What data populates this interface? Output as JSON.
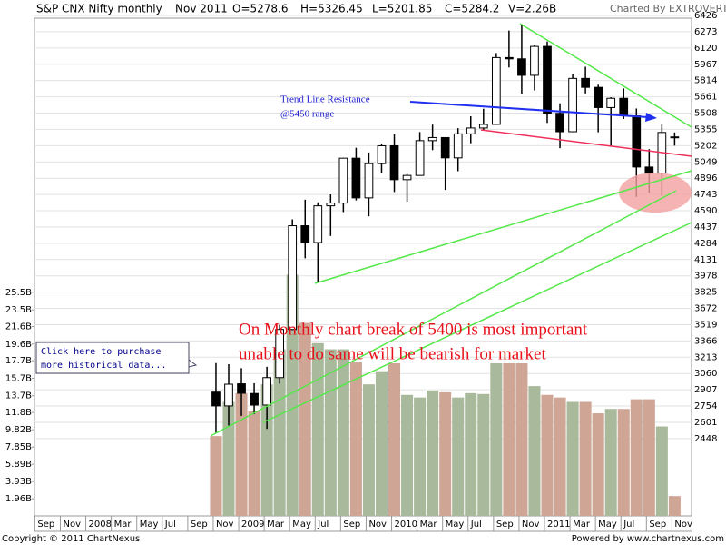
{
  "chart_data": {
    "type": "candlestick",
    "title": "S&P CNX Nifty monthly",
    "header": [
      "Nov 2011",
      "O=5278.6",
      "H=5326.45",
      "L=5201.85",
      "C=5284.2",
      "V=2.26B"
    ],
    "credit": "Charted By EXTROVERT",
    "footer_left": "Copyright © 2011 ChartNexus",
    "footer_right": "Powered by www.chartnexus.com",
    "tooltip": [
      "Click here to purchase",
      "more historical data..."
    ],
    "annotations": [
      "Trend Line Resistance",
      "@5450 range",
      "On Monthly chart break of 5400 is most important",
      "unable to do same will be bearish for market"
    ],
    "categories": [
      "Sep",
      null,
      "Nov",
      null,
      "2008",
      null,
      "Mar",
      null,
      "May",
      null,
      "Jul",
      null,
      "Sep",
      null,
      "Nov",
      null,
      "2009",
      null,
      "Mar",
      null,
      "May",
      null,
      "Jul",
      null,
      "Sep",
      null,
      "Nov",
      null,
      "2010",
      null,
      "Mar",
      null,
      "May",
      null,
      "Jul",
      null,
      "Sep",
      null,
      "Nov",
      null,
      "2011",
      null,
      "Mar",
      null,
      "May",
      null,
      "Jul",
      null,
      "Sep",
      null,
      "Nov"
    ],
    "open": [
      null,
      null,
      null,
      null,
      null,
      null,
      null,
      null,
      null,
      null,
      null,
      null,
      null,
      null,
      2885,
      2755,
      2963,
      2872,
      2763,
      3021,
      3474,
      4449,
      4291,
      4636,
      4662,
      5084,
      4711,
      5033,
      5201,
      4882,
      4922,
      5249,
      5278,
      5087,
      5313,
      5368,
      5402,
      6030,
      6018,
      5863,
      6135,
      5506,
      5333,
      5834,
      5750,
      5560,
      5647,
      5482,
      5001,
      4943,
      5278.6
    ],
    "high": [
      null,
      null,
      null,
      null,
      null,
      null,
      null,
      null,
      null,
      null,
      null,
      null,
      null,
      null,
      3158,
      3147,
      3110,
      2968,
      3123,
      3518,
      4509,
      4694,
      4669,
      4744,
      5087,
      5182,
      5138,
      5221,
      5311,
      4935,
      5330,
      5400,
      5278,
      5366,
      5478,
      5549,
      6073,
      6284,
      6338,
      6147,
      6181,
      5600,
      5872,
      5944,
      5775,
      5657,
      5740,
      5551,
      5169,
      5399,
      5326.45
    ],
    "low": [
      null,
      null,
      null,
      null,
      null,
      null,
      null,
      null,
      null,
      null,
      null,
      null,
      null,
      null,
      2502,
      2570,
      2661,
      2677,
      2539,
      2965,
      3468,
      4143,
      3919,
      4353,
      4577,
      4687,
      4538,
      4944,
      4766,
      4675,
      4922,
      5160,
      4786,
      4962,
      5225,
      5348,
      5403,
      5937,
      5690,
      5721,
      5416,
      5178,
      5330,
      5693,
      5328,
      5196,
      5453,
      4720,
      4758,
      4728,
      5201.85
    ],
    "close": [
      null,
      null,
      null,
      null,
      null,
      null,
      null,
      null,
      null,
      null,
      null,
      null,
      null,
      null,
      2755,
      2959,
      2874,
      2763,
      3021,
      3474,
      4449,
      4291,
      4636,
      4662,
      5084,
      4711,
      5033,
      5201,
      4882,
      4922,
      5249,
      5278,
      5087,
      5313,
      5368,
      5402,
      6030,
      6018,
      5863,
      6135,
      5506,
      5333,
      5834,
      5750,
      5560,
      5647,
      5482,
      5001,
      4943,
      5326,
      5284.2
    ],
    "volume": [
      null,
      null,
      null,
      null,
      null,
      null,
      null,
      null,
      null,
      null,
      null,
      null,
      null,
      null,
      9.1,
      13,
      14,
      12,
      15,
      19,
      27.5,
      22,
      19.7,
      19,
      19,
      17.5,
      15,
      16.5,
      17.4,
      13.8,
      13.5,
      14.3,
      14.1,
      13.5,
      14,
      13.9,
      17.4,
      17.4,
      17.4,
      14.8,
      13.8,
      13.5,
      13,
      13,
      11.7,
      12.2,
      12.2,
      13.3,
      13.3,
      10.2,
      2.26
    ],
    "up_color": "#ffffff",
    "down_color": "#000000",
    "volume_up_color": "#a9b99c",
    "volume_down_color": "#cfa596",
    "ylim": [
      1721,
      6503
    ],
    "yticks": [
      2448,
      2601,
      2754,
      2907,
      3060,
      3213,
      3366,
      3519,
      3672,
      3825,
      3978,
      4131,
      4284,
      4437,
      4590,
      4743,
      4896,
      5049,
      5202,
      5355,
      5508,
      5661,
      5814,
      5967,
      6120,
      6273,
      6426
    ],
    "y2lim": [
      0,
      58
    ],
    "y2ticks": [
      {
        "value": 1.96,
        "label": "1.96B"
      },
      {
        "value": 3.93,
        "label": "3.93B"
      },
      {
        "value": 5.89,
        "label": "5.89B"
      },
      {
        "value": 7.85,
        "label": "7.85B"
      },
      {
        "value": 9.82,
        "label": "9.82B"
      },
      {
        "value": 11.8,
        "label": "11.8B"
      },
      {
        "value": 13.7,
        "label": "13.7B"
      },
      {
        "value": 15.7,
        "label": "15.7B"
      },
      {
        "value": 17.7,
        "label": "17.7B"
      },
      {
        "value": 19.6,
        "label": "19.6B"
      },
      {
        "value": 21.6,
        "label": "21.6B"
      },
      {
        "value": 23.5,
        "label": "23.5B"
      },
      {
        "value": 25.5,
        "label": "25.5B"
      }
    ],
    "grid": true
  }
}
